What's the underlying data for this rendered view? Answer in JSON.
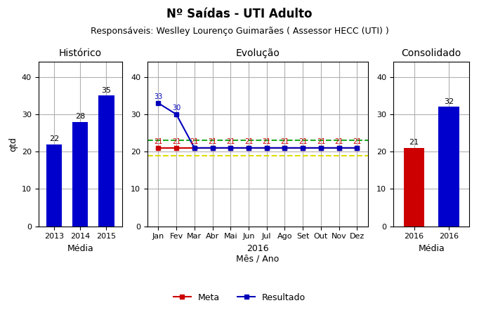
{
  "title": "Nº Saídas - UTI Adulto",
  "subtitle": "Responsáveis: Weslley Lourenço Guimarães ( Assessor HECC (UTI) )",
  "chart_data": [
    {
      "type": "bar",
      "title": "Histórico",
      "categories": [
        "2013",
        "2014",
        "2015"
      ],
      "values": [
        22,
        28,
        35
      ],
      "color": "#0000cc",
      "x_label": "Média",
      "y_label": "qtd",
      "ylim": [
        0,
        44
      ],
      "yticks": [
        0,
        10,
        20,
        30,
        40
      ],
      "grid": true,
      "data_labels": true
    },
    {
      "type": "line",
      "title": "Evolução",
      "categories": [
        "Jan",
        "Fev",
        "Mar",
        "Abr",
        "Mai",
        "Jun",
        "Jul",
        "Ago",
        "Set",
        "Out",
        "Nov",
        "Dez"
      ],
      "x_label": "2016\nMês / Ano",
      "series": [
        {
          "name": "Meta",
          "color": "#cc0000",
          "marker": "square",
          "line_style": "solid",
          "values": [
            21,
            21,
            21,
            21,
            21,
            21,
            21,
            21,
            21,
            21,
            21,
            21
          ],
          "data_labels": true
        },
        {
          "name": "Resultado",
          "color": "#0000bb",
          "marker": "square",
          "line_style": "solid",
          "values": [
            33,
            30,
            21,
            21,
            21,
            21,
            21,
            21,
            21,
            21,
            21,
            21
          ],
          "data_labels": true,
          "value_labels": [
            "33",
            "30",
            null,
            null,
            null,
            null,
            null,
            null,
            null,
            null,
            null,
            null
          ]
        }
      ],
      "reference_lines": [
        {
          "value": 23,
          "color": "#22aa22",
          "line_style": "dashed"
        },
        {
          "value": 19,
          "color": "#dddd00",
          "line_style": "dashed"
        }
      ],
      "ylim": [
        0,
        44
      ],
      "yticks": [
        0,
        10,
        20,
        30,
        40
      ],
      "grid": true,
      "legend": "lower center"
    },
    {
      "type": "bar",
      "title": "Consolidado",
      "categories": [
        "2016",
        "2016"
      ],
      "values": [
        21,
        32
      ],
      "colors": [
        "#cc0000",
        "#0000cc"
      ],
      "x_label": "Média",
      "ylim": [
        0,
        44
      ],
      "yticks": [
        0,
        10,
        20,
        30,
        40
      ],
      "grid": true,
      "data_labels": true
    }
  ]
}
